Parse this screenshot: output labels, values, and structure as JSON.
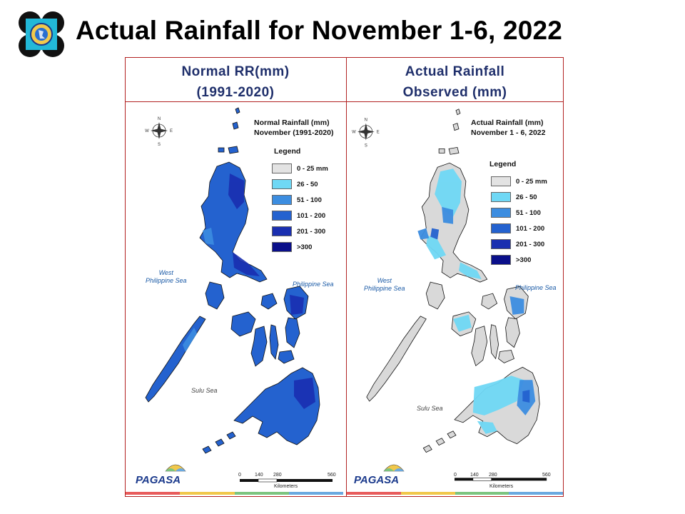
{
  "slide": {
    "title": "Actual Rainfall for November 1-6, 2022"
  },
  "headers": {
    "left": {
      "line1": "Normal RR(mm)",
      "line2": "(1991-2020)"
    },
    "right": {
      "line1": "Actual Rainfall",
      "line2": "Observed (mm)"
    }
  },
  "maps": [
    {
      "title_line1": "Normal Rainfall (mm)",
      "title_line2": "November (1991-2020)",
      "legend_title": "Legend",
      "legend": [
        {
          "label": "0 - 25 mm",
          "color": "#e3e3e3"
        },
        {
          "label": "26 - 50",
          "color": "#6fd8f5"
        },
        {
          "label": "51 - 100",
          "color": "#3c8de0"
        },
        {
          "label": "101 - 200",
          "color": "#2462cf"
        },
        {
          "label": "201 - 300",
          "color": "#1a2fb0"
        },
        {
          "label": ">300",
          "color": "#0a0f8a"
        }
      ],
      "sea_west_1": "West",
      "sea_west_2": "Philippine Sea",
      "sea_east": "Philippine Sea",
      "sea_sulu": "Sulu Sea",
      "scale": [
        "0",
        "140",
        "280",
        "560"
      ],
      "scale_unit": "Kilometers",
      "logo_text": "PAGASA",
      "compass": {
        "n": "N",
        "s": "S",
        "e": "E",
        "w": "W"
      }
    },
    {
      "title_line1": "Actual Rainfall (mm)",
      "title_line2": "November 1 - 6, 2022",
      "legend_title": "Legend",
      "legend": [
        {
          "label": "0 - 25 mm",
          "color": "#e3e3e3"
        },
        {
          "label": "26 - 50",
          "color": "#6fd8f5"
        },
        {
          "label": "51 - 100",
          "color": "#3c8de0"
        },
        {
          "label": "101 - 200",
          "color": "#2462cf"
        },
        {
          "label": "201 - 300",
          "color": "#1a2fb0"
        },
        {
          "label": ">300",
          "color": "#0a0f8a"
        }
      ],
      "sea_west_1": "West",
      "sea_west_2": "Philippine Sea",
      "sea_east": "Philippine Sea",
      "sea_sulu": "Sulu Sea",
      "scale": [
        "0",
        "140",
        "280",
        "560"
      ],
      "scale_unit": "Kilometers",
      "logo_text": "PAGASA",
      "compass": {
        "n": "N",
        "s": "S",
        "e": "E",
        "w": "W"
      }
    }
  ],
  "footer_colors": [
    "#e85b5b",
    "#f1c84b",
    "#7cc47f",
    "#6aa9e0"
  ]
}
